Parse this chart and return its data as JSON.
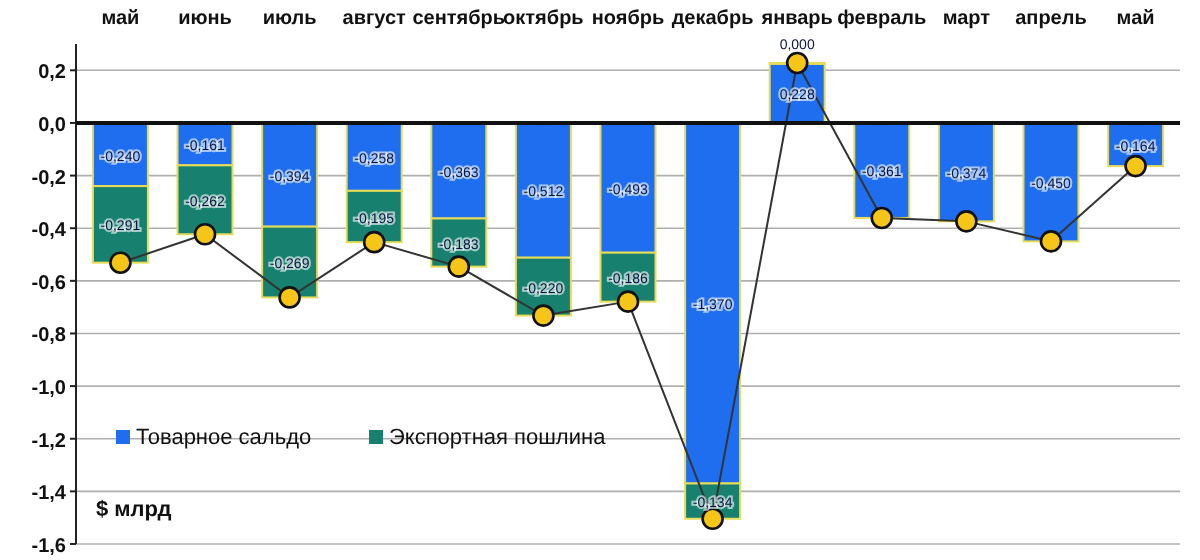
{
  "chart_data": {
    "type": "bar",
    "stacked": true,
    "ylabel": "$ млрд",
    "categories": [
      "май",
      "июнь",
      "июль",
      "август",
      "сентябрь",
      "октябрь",
      "ноябрь",
      "декабрь",
      "январь",
      "февраль",
      "март",
      "апрель",
      "май"
    ],
    "series": [
      {
        "name": "Товарное сальдо",
        "color": "#1f6ef0",
        "values": [
          -0.24,
          -0.161,
          -0.394,
          -0.258,
          -0.363,
          -0.512,
          -0.493,
          -1.37,
          0.228,
          -0.361,
          -0.374,
          -0.45,
          -0.164
        ],
        "value_labels": [
          "-0,240",
          "-0,161",
          "-0,394",
          "-0,258",
          "-0,363",
          "-0,512",
          "-0,493",
          "-1,370",
          "0,228",
          "-0,361",
          "-0,374",
          "-0,450",
          "-0,164"
        ]
      },
      {
        "name": "Экспортная пошлина",
        "color": "#17806f",
        "values": [
          -0.291,
          -0.262,
          -0.269,
          -0.195,
          -0.183,
          -0.22,
          -0.186,
          -0.134,
          0.0,
          null,
          null,
          null,
          null
        ],
        "value_labels": [
          "-0,291",
          "-0,262",
          "-0,269",
          "-0,195",
          "-0,183",
          "-0,220",
          "-0,186",
          "-0,134",
          "0,000",
          null,
          null,
          null,
          null
        ]
      },
      {
        "type": "line",
        "color": "#f5c518",
        "marker": "circle",
        "values": [
          -0.531,
          -0.423,
          -0.663,
          -0.453,
          -0.546,
          -0.732,
          -0.679,
          -1.504,
          0.228,
          -0.361,
          -0.374,
          -0.45,
          -0.164
        ]
      }
    ],
    "ylim": [
      -1.6,
      0.3
    ],
    "yticks": [
      {
        "value": 0.2,
        "label": "0,2"
      },
      {
        "value": 0.0,
        "label": "0,0"
      },
      {
        "value": -0.2,
        "label": "-0,2"
      },
      {
        "value": -0.4,
        "label": "-0,4"
      },
      {
        "value": -0.6,
        "label": "-0,6"
      },
      {
        "value": -0.8,
        "label": "-0,8"
      },
      {
        "value": -1.0,
        "label": "-1,0"
      },
      {
        "value": -1.2,
        "label": "-1,2"
      },
      {
        "value": -1.4,
        "label": "-1,4"
      },
      {
        "value": -1.6,
        "label": "-1,6"
      }
    ],
    "grid": "y",
    "legend": "bottom left"
  }
}
